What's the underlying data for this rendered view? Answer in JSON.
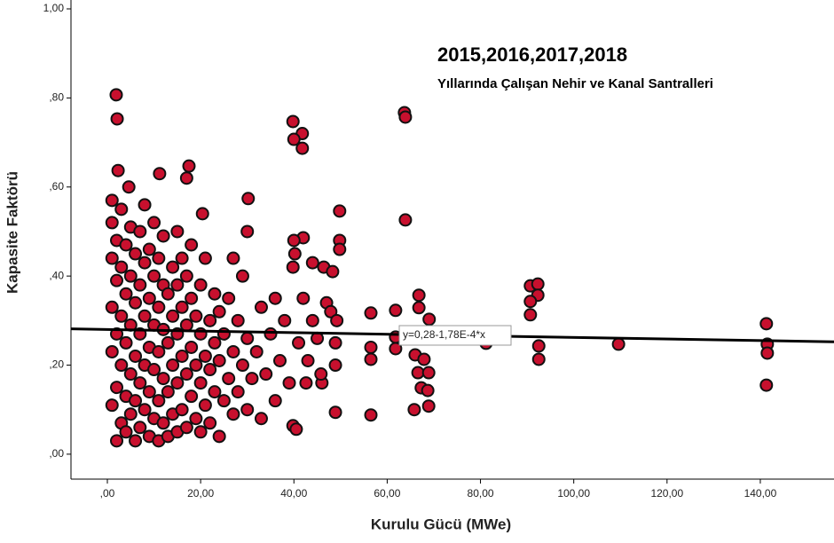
{
  "chart_data": {
    "type": "scatter",
    "title": "2015,2016,2017,2018",
    "subtitle": "Yıllarında Çalışan Nehir ve Kanal Santralleri",
    "x_label": "Kurulu Gücü (MWe)",
    "y_label": "Kapasite Faktörü",
    "xlim": [
      -7.8,
      155.8
    ],
    "ylim": [
      -0.056,
      1.0
    ],
    "xticks": [
      {
        "value": 0,
        "label": ",00"
      },
      {
        "value": 20,
        "label": "20,00"
      },
      {
        "value": 40,
        "label": "40,00"
      },
      {
        "value": 60,
        "label": "60,00"
      },
      {
        "value": 80,
        "label": "80,00"
      },
      {
        "value": 100,
        "label": "100,00"
      },
      {
        "value": 120,
        "label": "120,00"
      },
      {
        "value": 140,
        "label": "140,00"
      }
    ],
    "yticks": [
      {
        "value": 0,
        "label": ",00"
      },
      {
        "value": 0.2,
        "label": ",20"
      },
      {
        "value": 0.4,
        "label": ",40"
      },
      {
        "value": 0.6,
        "label": ",60"
      },
      {
        "value": 0.8,
        "label": ",80"
      },
      {
        "value": 1.0,
        "label": "1,00"
      }
    ],
    "fit_line": {
      "intercept": 0.28,
      "slope": -0.000178,
      "label": "y=0,28-1,78E-4*x"
    },
    "series": [
      {
        "color": "#c8102e",
        "x": [
          1,
          1,
          1,
          1,
          1,
          2,
          2,
          2,
          2,
          2,
          3,
          3,
          3,
          3,
          3,
          4,
          4,
          4,
          4,
          4,
          5,
          5,
          5,
          5,
          5,
          6,
          6,
          6,
          6,
          6,
          7,
          7,
          7,
          7,
          7,
          8,
          8,
          8,
          8,
          8,
          9,
          9,
          9,
          9,
          9,
          10,
          10,
          10,
          10,
          10,
          11,
          11,
          11,
          11,
          11,
          12,
          12,
          12,
          12,
          12,
          13,
          13,
          13,
          13,
          14,
          14,
          14,
          14,
          15,
          15,
          15,
          15,
          15,
          16,
          16,
          16,
          16,
          17,
          17,
          17,
          17,
          18,
          18,
          18,
          18,
          19,
          19,
          19,
          20,
          20,
          20,
          20,
          21,
          21,
          21,
          22,
          22,
          22,
          23,
          23,
          23,
          24,
          24,
          24,
          25,
          25,
          26,
          26,
          27,
          27,
          27,
          28,
          28,
          29,
          29,
          30,
          30,
          30,
          31,
          32,
          33,
          33,
          34,
          35,
          36,
          36,
          37,
          38,
          39,
          41,
          42,
          43,
          44,
          45,
          46,
          47,
          1.9,
          2.1,
          2.3,
          1,
          4.6,
          11.2,
          17.5,
          17,
          20.4,
          30.2,
          39.8,
          41.8,
          40,
          41.8,
          49.8,
          49.8,
          49.8,
          42,
          40,
          40.2,
          39.8,
          44,
          46.4,
          48.3,
          47.9,
          49.2,
          48.9,
          48.9,
          48.9,
          39.8,
          40.5,
          45.8,
          42.6,
          56.5,
          56.5,
          56.5,
          56.5,
          63.7,
          63.9,
          63.9,
          61.8,
          61.8,
          61.8,
          65.4,
          66,
          66.8,
          66.8,
          67.9,
          66.6,
          67.3,
          65.8,
          69,
          68.9,
          68.7,
          68.9,
          81.2,
          90.7,
          92.3,
          92.3,
          90.7,
          90.7,
          92.5,
          92.5,
          109.6,
          141.3,
          141.5,
          141.5,
          141.3
        ],
        "values": [
          0.11,
          0.23,
          0.33,
          0.44,
          0.52,
          0.03,
          0.15,
          0.27,
          0.39,
          0.48,
          0.07,
          0.2,
          0.31,
          0.42,
          0.55,
          0.05,
          0.13,
          0.25,
          0.36,
          0.47,
          0.09,
          0.18,
          0.29,
          0.4,
          0.51,
          0.03,
          0.12,
          0.22,
          0.34,
          0.45,
          0.06,
          0.16,
          0.27,
          0.38,
          0.5,
          0.1,
          0.2,
          0.31,
          0.43,
          0.56,
          0.04,
          0.14,
          0.24,
          0.35,
          0.46,
          0.08,
          0.19,
          0.29,
          0.4,
          0.52,
          0.03,
          0.12,
          0.23,
          0.33,
          0.44,
          0.07,
          0.17,
          0.28,
          0.38,
          0.49,
          0.04,
          0.14,
          0.25,
          0.36,
          0.09,
          0.2,
          0.31,
          0.42,
          0.05,
          0.16,
          0.27,
          0.38,
          0.5,
          0.1,
          0.22,
          0.33,
          0.44,
          0.06,
          0.18,
          0.29,
          0.4,
          0.13,
          0.24,
          0.35,
          0.47,
          0.08,
          0.2,
          0.31,
          0.05,
          0.16,
          0.27,
          0.38,
          0.11,
          0.22,
          0.44,
          0.07,
          0.19,
          0.3,
          0.14,
          0.25,
          0.36,
          0.04,
          0.21,
          0.32,
          0.12,
          0.27,
          0.17,
          0.35,
          0.09,
          0.23,
          0.44,
          0.14,
          0.3,
          0.2,
          0.4,
          0.1,
          0.26,
          0.5,
          0.17,
          0.23,
          0.08,
          0.33,
          0.18,
          0.27,
          0.12,
          0.35,
          0.21,
          0.3,
          0.16,
          0.25,
          0.35,
          0.21,
          0.3,
          0.26,
          0.16,
          0.34,
          0.807,
          0.753,
          0.637,
          0.57,
          0.6,
          0.63,
          0.647,
          0.62,
          0.54,
          0.574,
          0.747,
          0.72,
          0.707,
          0.687,
          0.546,
          0.48,
          0.46,
          0.486,
          0.48,
          0.45,
          0.42,
          0.43,
          0.42,
          0.41,
          0.32,
          0.3,
          0.25,
          0.2,
          0.094,
          0.064,
          0.056,
          0.18,
          0.16,
          0.317,
          0.24,
          0.213,
          0.088,
          0.767,
          0.757,
          0.526,
          0.323,
          0.263,
          0.237,
          0.269,
          0.223,
          0.357,
          0.329,
          0.213,
          0.183,
          0.149,
          0.1,
          0.303,
          0.183,
          0.143,
          0.108,
          0.249,
          0.378,
          0.382,
          0.357,
          0.343,
          0.313,
          0.243,
          0.213,
          0.247,
          0.293,
          0.247,
          0.227,
          0.155
        ]
      }
    ]
  }
}
